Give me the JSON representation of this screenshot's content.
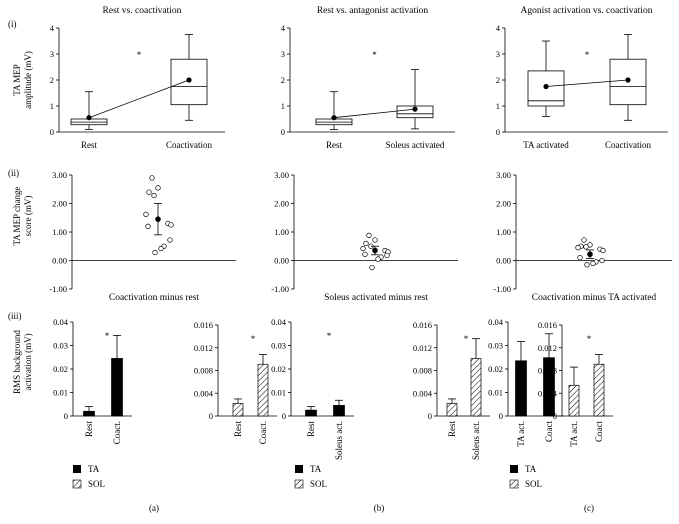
{
  "row_labels": {
    "i": "(i)",
    "ii": "(ii)",
    "iii": "(iii)"
  },
  "column_labels": [
    "(a)",
    "(b)",
    "(c)"
  ],
  "ylabels": {
    "box": [
      "TA MEP",
      "amplitude (mV)"
    ],
    "change": [
      "TA MEP change",
      "score (mV)"
    ],
    "rms": [
      "RMS background",
      "activation (mV)"
    ]
  },
  "legend": {
    "ta": "TA",
    "sol": "SOL"
  },
  "chart_data": [
    {
      "type": "box",
      "title": "Rest vs. coactivation",
      "categories": [
        "Rest",
        "Coactivation"
      ],
      "ylim": [
        0,
        4
      ],
      "yticks": [
        "0",
        "1",
        "2",
        "3",
        "4"
      ],
      "boxes": [
        {
          "min": 0.1,
          "q1": 0.28,
          "median": 0.38,
          "q3": 0.5,
          "max": 1.55,
          "mean": 0.55
        },
        {
          "min": 0.45,
          "q1": 1.05,
          "median": 1.75,
          "q3": 2.8,
          "max": 3.75,
          "mean": 2.0
        }
      ],
      "significance": "*"
    },
    {
      "type": "box",
      "title": "Rest vs. antagonist activation",
      "categories": [
        "Rest",
        "Soleus activated"
      ],
      "ylim": [
        0,
        4
      ],
      "yticks": [
        "0",
        "1",
        "2",
        "3",
        "4"
      ],
      "boxes": [
        {
          "min": 0.1,
          "q1": 0.28,
          "median": 0.38,
          "q3": 0.5,
          "max": 1.55,
          "mean": 0.55
        },
        {
          "min": 0.12,
          "q1": 0.55,
          "median": 0.7,
          "q3": 1.0,
          "max": 2.4,
          "mean": 0.88
        }
      ],
      "significance": "*"
    },
    {
      "type": "box",
      "title": "Agonist activation vs. coactivation",
      "categories": [
        "TA activated",
        "Coactivation"
      ],
      "ylim": [
        0,
        4
      ],
      "yticks": [
        "0",
        "1",
        "2",
        "3",
        "4"
      ],
      "boxes": [
        {
          "min": 0.6,
          "q1": 1.0,
          "median": 1.2,
          "q3": 2.35,
          "max": 3.5,
          "mean": 1.75
        },
        {
          "min": 0.45,
          "q1": 1.05,
          "median": 1.75,
          "q3": 2.8,
          "max": 3.75,
          "mean": 2.0
        }
      ],
      "significance": "*"
    },
    {
      "type": "scatter",
      "title": "Coactivation minus rest",
      "ylim": [
        -1,
        3
      ],
      "yticks": [
        "-1.00",
        "0.00",
        "1.00",
        "2.00",
        "3.00"
      ],
      "points": [
        2.9,
        2.55,
        2.4,
        2.28,
        1.62,
        1.3,
        1.25,
        1.2,
        0.72,
        0.5,
        0.42,
        0.28
      ],
      "mean": 1.45,
      "error": 0.55
    },
    {
      "type": "scatter",
      "title": "Soleus activated minus rest",
      "ylim": [
        -1,
        3
      ],
      "yticks": [
        "-1.00",
        "0.00",
        "1.00",
        "2.00",
        "3.00"
      ],
      "points": [
        0.88,
        0.72,
        0.6,
        0.5,
        0.42,
        0.35,
        0.3,
        0.22,
        0.18,
        0.12,
        0.05,
        -0.25
      ],
      "mean": 0.35,
      "error": 0.15
    },
    {
      "type": "scatter",
      "title": "Coactivation minus TA activated",
      "ylim": [
        -1,
        3
      ],
      "yticks": [
        "-1.00",
        "0.00",
        "1.00",
        "2.00",
        "3.00"
      ],
      "points": [
        0.72,
        0.55,
        0.5,
        0.48,
        0.45,
        0.4,
        0.35,
        0.1,
        0.0,
        -0.05,
        -0.1,
        -0.15
      ],
      "mean": 0.22,
      "error": 0.15
    },
    {
      "type": "bar",
      "title": "",
      "categories": [
        "Rest",
        "Coact."
      ],
      "fills": [
        "solid",
        "solid"
      ],
      "values": [
        0.002,
        0.0245
      ],
      "errors": [
        0.002,
        0.0098
      ],
      "ylim": [
        0,
        0.04
      ],
      "yticks": [
        "0",
        "0.01",
        "0.02",
        "0.03",
        "0.04"
      ],
      "significance": "*"
    },
    {
      "type": "bar",
      "title": "",
      "categories": [
        "Rest",
        "Coact."
      ],
      "fills": [
        "hatch",
        "hatch"
      ],
      "values": [
        0.0022,
        0.0091
      ],
      "errors": [
        0.0008,
        0.0017
      ],
      "ylim": [
        0,
        0.016
      ],
      "yticks": [
        "0",
        "0.004",
        "0.008",
        "0.012",
        "0.016"
      ],
      "significance": "*"
    },
    {
      "type": "bar",
      "title": "",
      "categories": [
        "Rest",
        "Soleus act."
      ],
      "fills": [
        "solid",
        "solid"
      ],
      "values": [
        0.0025,
        0.0045
      ],
      "errors": [
        0.0015,
        0.0022
      ],
      "ylim": [
        0,
        0.04
      ],
      "yticks": [
        "0",
        "0.01",
        "0.02",
        "0.03",
        "0.04"
      ],
      "significance": "*"
    },
    {
      "type": "bar",
      "title": "",
      "categories": [
        "Rest",
        "Soleus act."
      ],
      "fills": [
        "hatch",
        "hatch"
      ],
      "values": [
        0.0022,
        0.0101
      ],
      "errors": [
        0.0008,
        0.0035
      ],
      "ylim": [
        0,
        0.016
      ],
      "yticks": [
        "0",
        "0.004",
        "0.008",
        "0.012",
        "0.016"
      ],
      "significance": "*"
    },
    {
      "type": "bar",
      "title": "",
      "categories": [
        "TA act.",
        "Coact"
      ],
      "fills": [
        "solid",
        "solid"
      ],
      "values": [
        0.0235,
        0.0248
      ],
      "errors": [
        0.0082,
        0.0102
      ],
      "ylim": [
        0,
        0.04
      ],
      "yticks": [
        "0",
        "0.01",
        "0.02",
        "0.03",
        "0.04"
      ],
      "significance": ""
    },
    {
      "type": "bar",
      "title": "",
      "categories": [
        "TA act.",
        "Coact"
      ],
      "fills": [
        "hatch",
        "hatch"
      ],
      "values": [
        0.0054,
        0.0091
      ],
      "errors": [
        0.0032,
        0.0017
      ],
      "ylim": [
        0,
        0.016
      ],
      "yticks": [
        "0",
        "0.004",
        "0.008",
        "0.012",
        "0.016"
      ],
      "significance": "*"
    }
  ]
}
